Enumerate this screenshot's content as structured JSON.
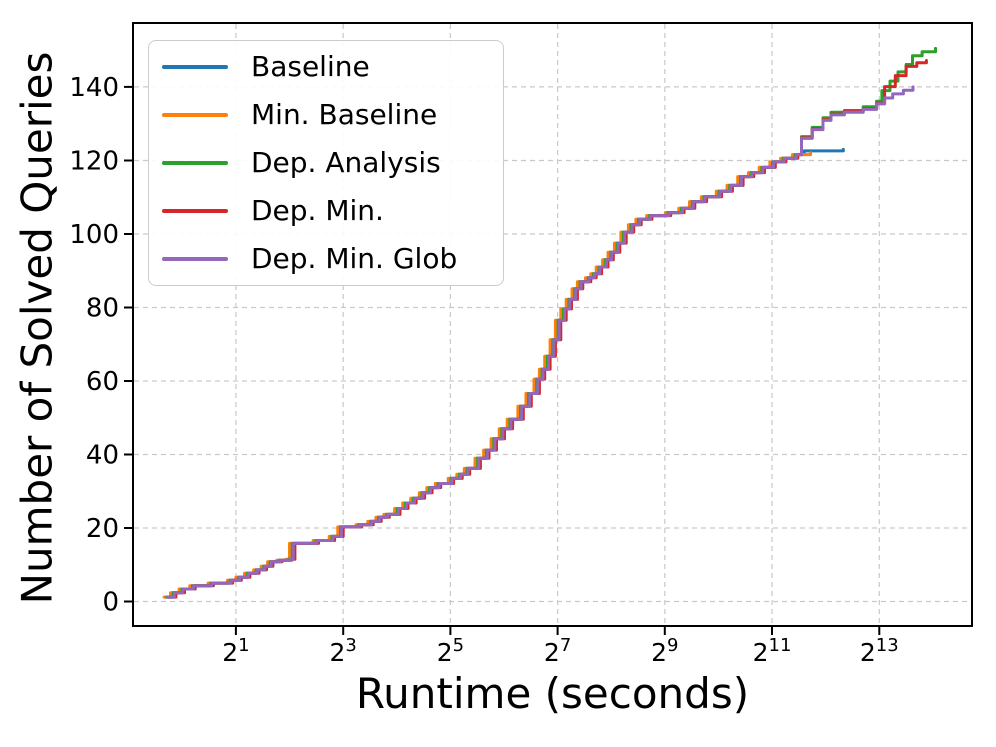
{
  "chart_data": {
    "type": "line",
    "subtype": "cactus-step-plot",
    "title": "",
    "xlabel": "Runtime (seconds)",
    "ylabel": "Number of Solved Queries",
    "x_scale": "log2",
    "x_tick_exponents": [
      1,
      3,
      5,
      7,
      9,
      11,
      13
    ],
    "x_tick_labels": [
      "2¹",
      "2³",
      "2⁵",
      "2⁷",
      "2⁹",
      "2¹¹",
      "2¹³"
    ],
    "y_ticks": [
      0,
      20,
      40,
      60,
      80,
      100,
      120,
      140
    ],
    "xlim_exponents": [
      -0.92,
      14.73
    ],
    "ylim": [
      -6.67,
      157.4
    ],
    "grid": true,
    "grid_style": "dashed",
    "legend_position": "upper-left",
    "line_style": "step-after",
    "base_curve_note": "shared cumulative curve, points are [log2(runtime), queries solved]",
    "base_curve": [
      [
        -0.3,
        1.2
      ],
      [
        -0.18,
        2.4
      ],
      [
        -0.02,
        3.4
      ],
      [
        0.18,
        4.3
      ],
      [
        0.52,
        5.0
      ],
      [
        0.88,
        5.8
      ],
      [
        1.04,
        6.6
      ],
      [
        1.2,
        7.7
      ],
      [
        1.37,
        8.6
      ],
      [
        1.51,
        9.6
      ],
      [
        1.63,
        10.8
      ],
      [
        1.8,
        11.2
      ],
      [
        1.98,
        11.5
      ],
      [
        2.04,
        15.8
      ],
      [
        2.48,
        16.6
      ],
      [
        2.78,
        17.7
      ],
      [
        2.94,
        20.3
      ],
      [
        3.28,
        20.9
      ],
      [
        3.5,
        21.8
      ],
      [
        3.65,
        22.9
      ],
      [
        3.8,
        23.7
      ],
      [
        4.0,
        25.3
      ],
      [
        4.15,
        26.8
      ],
      [
        4.3,
        28.1
      ],
      [
        4.46,
        29.6
      ],
      [
        4.6,
        31.0
      ],
      [
        4.76,
        32.1
      ],
      [
        5.0,
        33.5
      ],
      [
        5.16,
        34.6
      ],
      [
        5.3,
        36.2
      ],
      [
        5.5,
        39.0
      ],
      [
        5.66,
        41.2
      ],
      [
        5.8,
        44.3
      ],
      [
        5.95,
        47.0
      ],
      [
        6.1,
        49.6
      ],
      [
        6.3,
        53.1
      ],
      [
        6.45,
        56.6
      ],
      [
        6.6,
        60.5
      ],
      [
        6.7,
        63.2
      ],
      [
        6.8,
        66.7
      ],
      [
        6.9,
        71.2
      ],
      [
        7.0,
        76.5
      ],
      [
        7.1,
        79.6
      ],
      [
        7.2,
        82.2
      ],
      [
        7.31,
        85.1
      ],
      [
        7.41,
        87.0
      ],
      [
        7.56,
        88.1
      ],
      [
        7.66,
        89.2
      ],
      [
        7.76,
        91.0
      ],
      [
        7.88,
        93.0
      ],
      [
        7.98,
        95.0
      ],
      [
        8.1,
        97.5
      ],
      [
        8.22,
        100.5
      ],
      [
        8.36,
        102.5
      ],
      [
        8.5,
        104.0
      ],
      [
        8.7,
        105.0
      ],
      [
        9.05,
        105.8
      ],
      [
        9.3,
        107.0
      ],
      [
        9.5,
        108.8
      ],
      [
        9.72,
        110.1
      ],
      [
        10.0,
        111.6
      ],
      [
        10.2,
        113.2
      ],
      [
        10.4,
        115.6
      ],
      [
        10.6,
        116.7
      ],
      [
        10.8,
        118.1
      ],
      [
        11.0,
        119.6
      ],
      [
        11.2,
        120.6
      ],
      [
        11.42,
        121.6
      ]
    ],
    "series": [
      {
        "name": "Baseline",
        "color": "#1f77b4",
        "x_shift": -0.01,
        "solved_total": 123,
        "end_exponent": 12.33,
        "tail": [
          [
            11.6,
            122.6
          ],
          [
            12.33,
            123.0
          ]
        ]
      },
      {
        "name": "Min. Baseline",
        "color": "#ff7f0e",
        "x_shift": -0.04,
        "solved_total": 122,
        "end_exponent": 11.72,
        "tail": [
          [
            11.72,
            122.1
          ]
        ]
      },
      {
        "name": "Dep. Analysis",
        "color": "#2ca02c",
        "x_shift": 0.01,
        "solved_total": 150,
        "end_exponent": 14.05,
        "tail": [
          [
            11.55,
            126.5
          ],
          [
            11.75,
            129.0
          ],
          [
            11.95,
            131.6
          ],
          [
            12.1,
            133.1
          ],
          [
            12.35,
            133.6
          ],
          [
            12.7,
            134.6
          ],
          [
            12.95,
            136.1
          ],
          [
            13.05,
            139.0
          ],
          [
            13.2,
            141.6
          ],
          [
            13.35,
            144.1
          ],
          [
            13.5,
            146.1
          ],
          [
            13.62,
            148.5
          ],
          [
            13.8,
            149.6
          ],
          [
            14.05,
            150.5
          ]
        ]
      },
      {
        "name": "Dep. Min.",
        "color": "#d62728",
        "x_shift": 0.06,
        "solved_total": 147,
        "end_exponent": 13.88,
        "tail": [
          [
            11.55,
            126.2
          ],
          [
            11.75,
            128.6
          ],
          [
            11.95,
            131.1
          ],
          [
            12.1,
            132.6
          ],
          [
            12.35,
            133.4
          ],
          [
            12.7,
            134.1
          ],
          [
            12.95,
            135.6
          ],
          [
            13.1,
            140.1
          ],
          [
            13.3,
            143.1
          ],
          [
            13.5,
            145.6
          ],
          [
            13.7,
            146.6
          ],
          [
            13.88,
            147.2
          ]
        ]
      },
      {
        "name": "Dep. Min. Glob",
        "color": "#9467bd",
        "x_shift": 0.03,
        "solved_total": 140,
        "end_exponent": 13.63,
        "tail": [
          [
            11.55,
            126.0
          ],
          [
            11.75,
            128.4
          ],
          [
            11.95,
            130.9
          ],
          [
            12.1,
            132.4
          ],
          [
            12.35,
            133.1
          ],
          [
            12.7,
            133.9
          ],
          [
            12.95,
            135.4
          ],
          [
            13.1,
            137.0
          ],
          [
            13.25,
            138.1
          ],
          [
            13.45,
            139.1
          ],
          [
            13.63,
            140.0
          ]
        ]
      }
    ]
  },
  "legend": {
    "items": [
      "Baseline",
      "Min. Baseline",
      "Dep. Analysis",
      "Dep. Min.",
      "Dep. Min. Glob"
    ]
  }
}
